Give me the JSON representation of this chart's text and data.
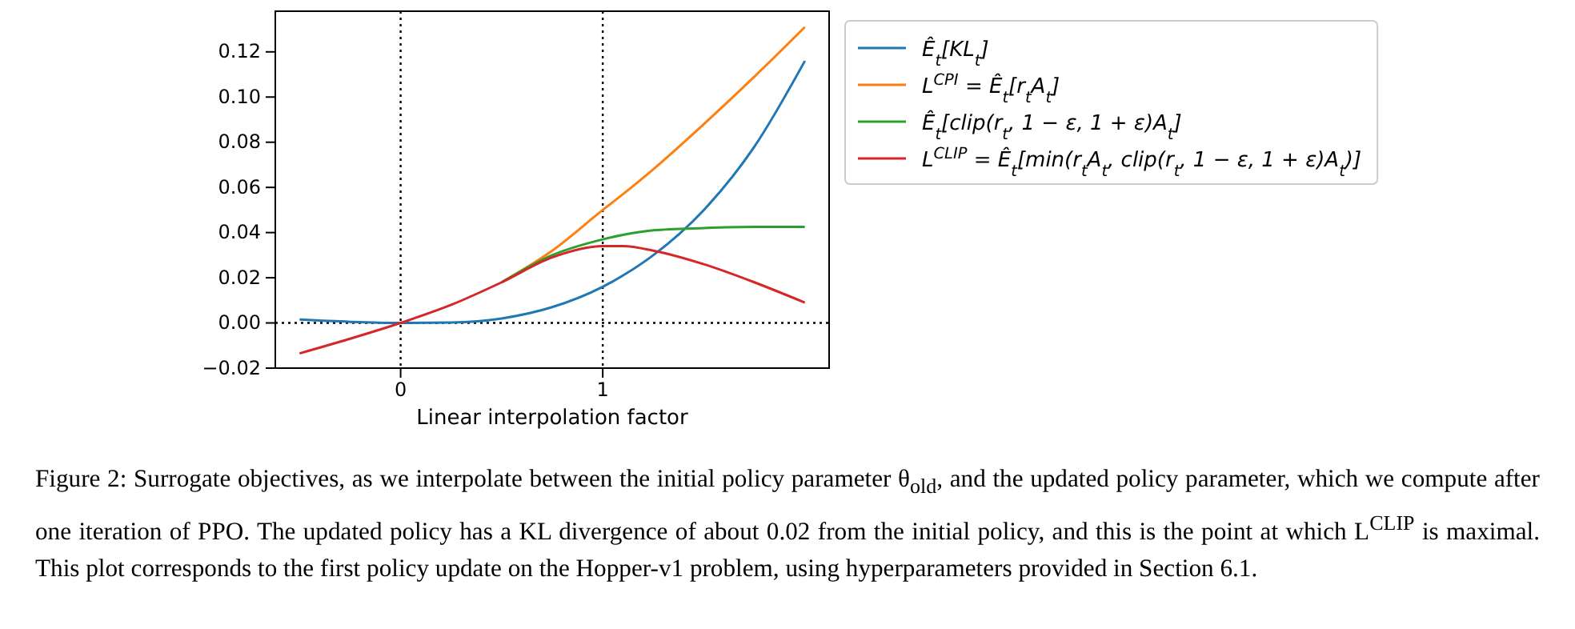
{
  "chart_data": {
    "type": "line",
    "xlabel": "Linear interpolation factor",
    "x": [
      -0.5,
      -0.25,
      0,
      0.25,
      0.5,
      0.75,
      1,
      1.1,
      1.25,
      1.5,
      1.75,
      2
    ],
    "xlim": [
      -0.62,
      2.12
    ],
    "xticks": [
      0,
      1
    ],
    "ylim": [
      -0.02,
      0.138
    ],
    "yticks": [
      -0.02,
      {
        "value": 0,
        "label": "0.00"
      },
      0.02,
      0.04,
      0.06,
      0.08,
      {
        "value": 0.1,
        "label": "0.10"
      },
      0.12
    ],
    "series": [
      {
        "name": "Ê$_{t}$[KL$_{t}$]",
        "color": "#1f77b4",
        "values": [
          0.0015,
          0.0005,
          0,
          0.0002,
          0.002,
          0.007,
          0.016,
          0.021,
          0.03,
          0.05,
          0.078,
          0.116
        ]
      },
      {
        "name": "L$^{CPI}$ = Ê$_{t}$[r$_{t}$A$_{t}$]",
        "color": "#ff7f0e",
        "values": [
          null,
          null,
          null,
          null,
          0.018,
          0.032,
          0.05,
          0.057,
          0.068,
          0.088,
          0.109,
          0.131
        ]
      },
      {
        "name": "Ê$_{t}$[clip(r$_{t}$, 1 − ε, 1 + ε)A$_{t}$]",
        "color": "#2ca02c",
        "values": [
          null,
          null,
          null,
          null,
          0.018,
          0.03,
          0.037,
          0.039,
          0.041,
          0.042,
          0.0425,
          0.0425
        ]
      },
      {
        "name": "L$^{CLIP}$ = Ê$_{t}$[min(r$_{t}$A$_{t}$, clip(r$_{t}$, 1 − ε, 1 + ε)A$_{t}$)]",
        "color": "#d62728",
        "values": [
          -0.0135,
          -0.007,
          0,
          0.008,
          0.018,
          0.029,
          0.034,
          0.034,
          0.032,
          0.026,
          0.018,
          0.009
        ]
      }
    ],
    "ref_lines": [
      {
        "axis": "x",
        "value": 0,
        "color": "#000000",
        "line_style": "dotted"
      },
      {
        "axis": "x",
        "value": 1,
        "color": "#000000",
        "line_style": "dotted"
      },
      {
        "axis": "y",
        "value": 0,
        "color": "#000000",
        "line_style": "dotted"
      }
    ],
    "legend": "top right",
    "grid": false,
    "marker": "none",
    "line_style": "solid",
    "annotations": [
      "Figure 2: Surrogate objectives, as we interpolate between the initial policy parameter θ$_{old}$, and the updated policy parameter, which we compute after one iteration of PPO. The updated policy has a KL divergence of about 0.02 from the initial policy, and this is the point at which L$^{CLIP}$ is maximal. This plot corresponds to the first policy update on the Hopper-v1 problem, using hyperparameters provided in Section 6.1."
    ]
  }
}
